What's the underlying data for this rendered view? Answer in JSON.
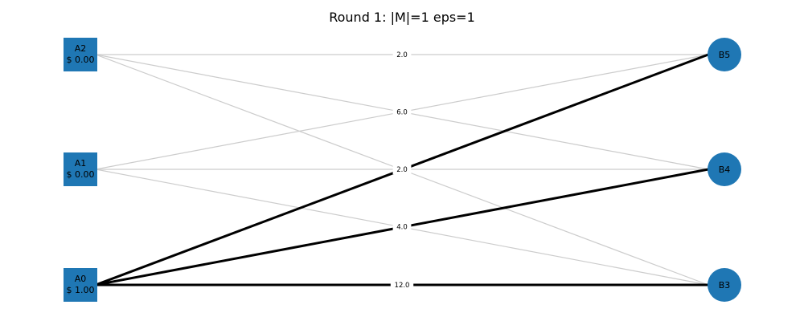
{
  "title": "Round 1: |M|=1 eps=1",
  "colors": {
    "node_fill": "#1f77b4",
    "edge_light": "#cccccc",
    "edge_bold": "#000000",
    "text": "#000000"
  },
  "left_nodes": [
    {
      "id": "A2",
      "label": "A2",
      "price": "$ 0.00"
    },
    {
      "id": "A1",
      "label": "A1",
      "price": "$ 0.00"
    },
    {
      "id": "A0",
      "label": "A0",
      "price": "$ 1.00"
    }
  ],
  "right_nodes": [
    {
      "id": "B5",
      "label": "B5"
    },
    {
      "id": "B4",
      "label": "B4"
    },
    {
      "id": "B3",
      "label": "B3"
    }
  ],
  "edges": [
    {
      "from": "A2",
      "to": "B5",
      "weight": "2.0",
      "bold": false
    },
    {
      "from": "A2",
      "to": "B4",
      "weight": "",
      "bold": false
    },
    {
      "from": "A2",
      "to": "B3",
      "weight": "",
      "bold": false
    },
    {
      "from": "A1",
      "to": "B5",
      "weight": "",
      "bold": false
    },
    {
      "from": "A1",
      "to": "B4",
      "weight": "",
      "bold": false
    },
    {
      "from": "A1",
      "to": "B3",
      "weight": "",
      "bold": false
    },
    {
      "from": "A0",
      "to": "B5",
      "weight": "",
      "bold": true
    },
    {
      "from": "A0",
      "to": "B4",
      "weight": "",
      "bold": true
    },
    {
      "from": "A0",
      "to": "B3",
      "weight": "12.0",
      "bold": true
    }
  ],
  "crossing_labels": [
    "6.0",
    "2.0",
    "4.0"
  ]
}
